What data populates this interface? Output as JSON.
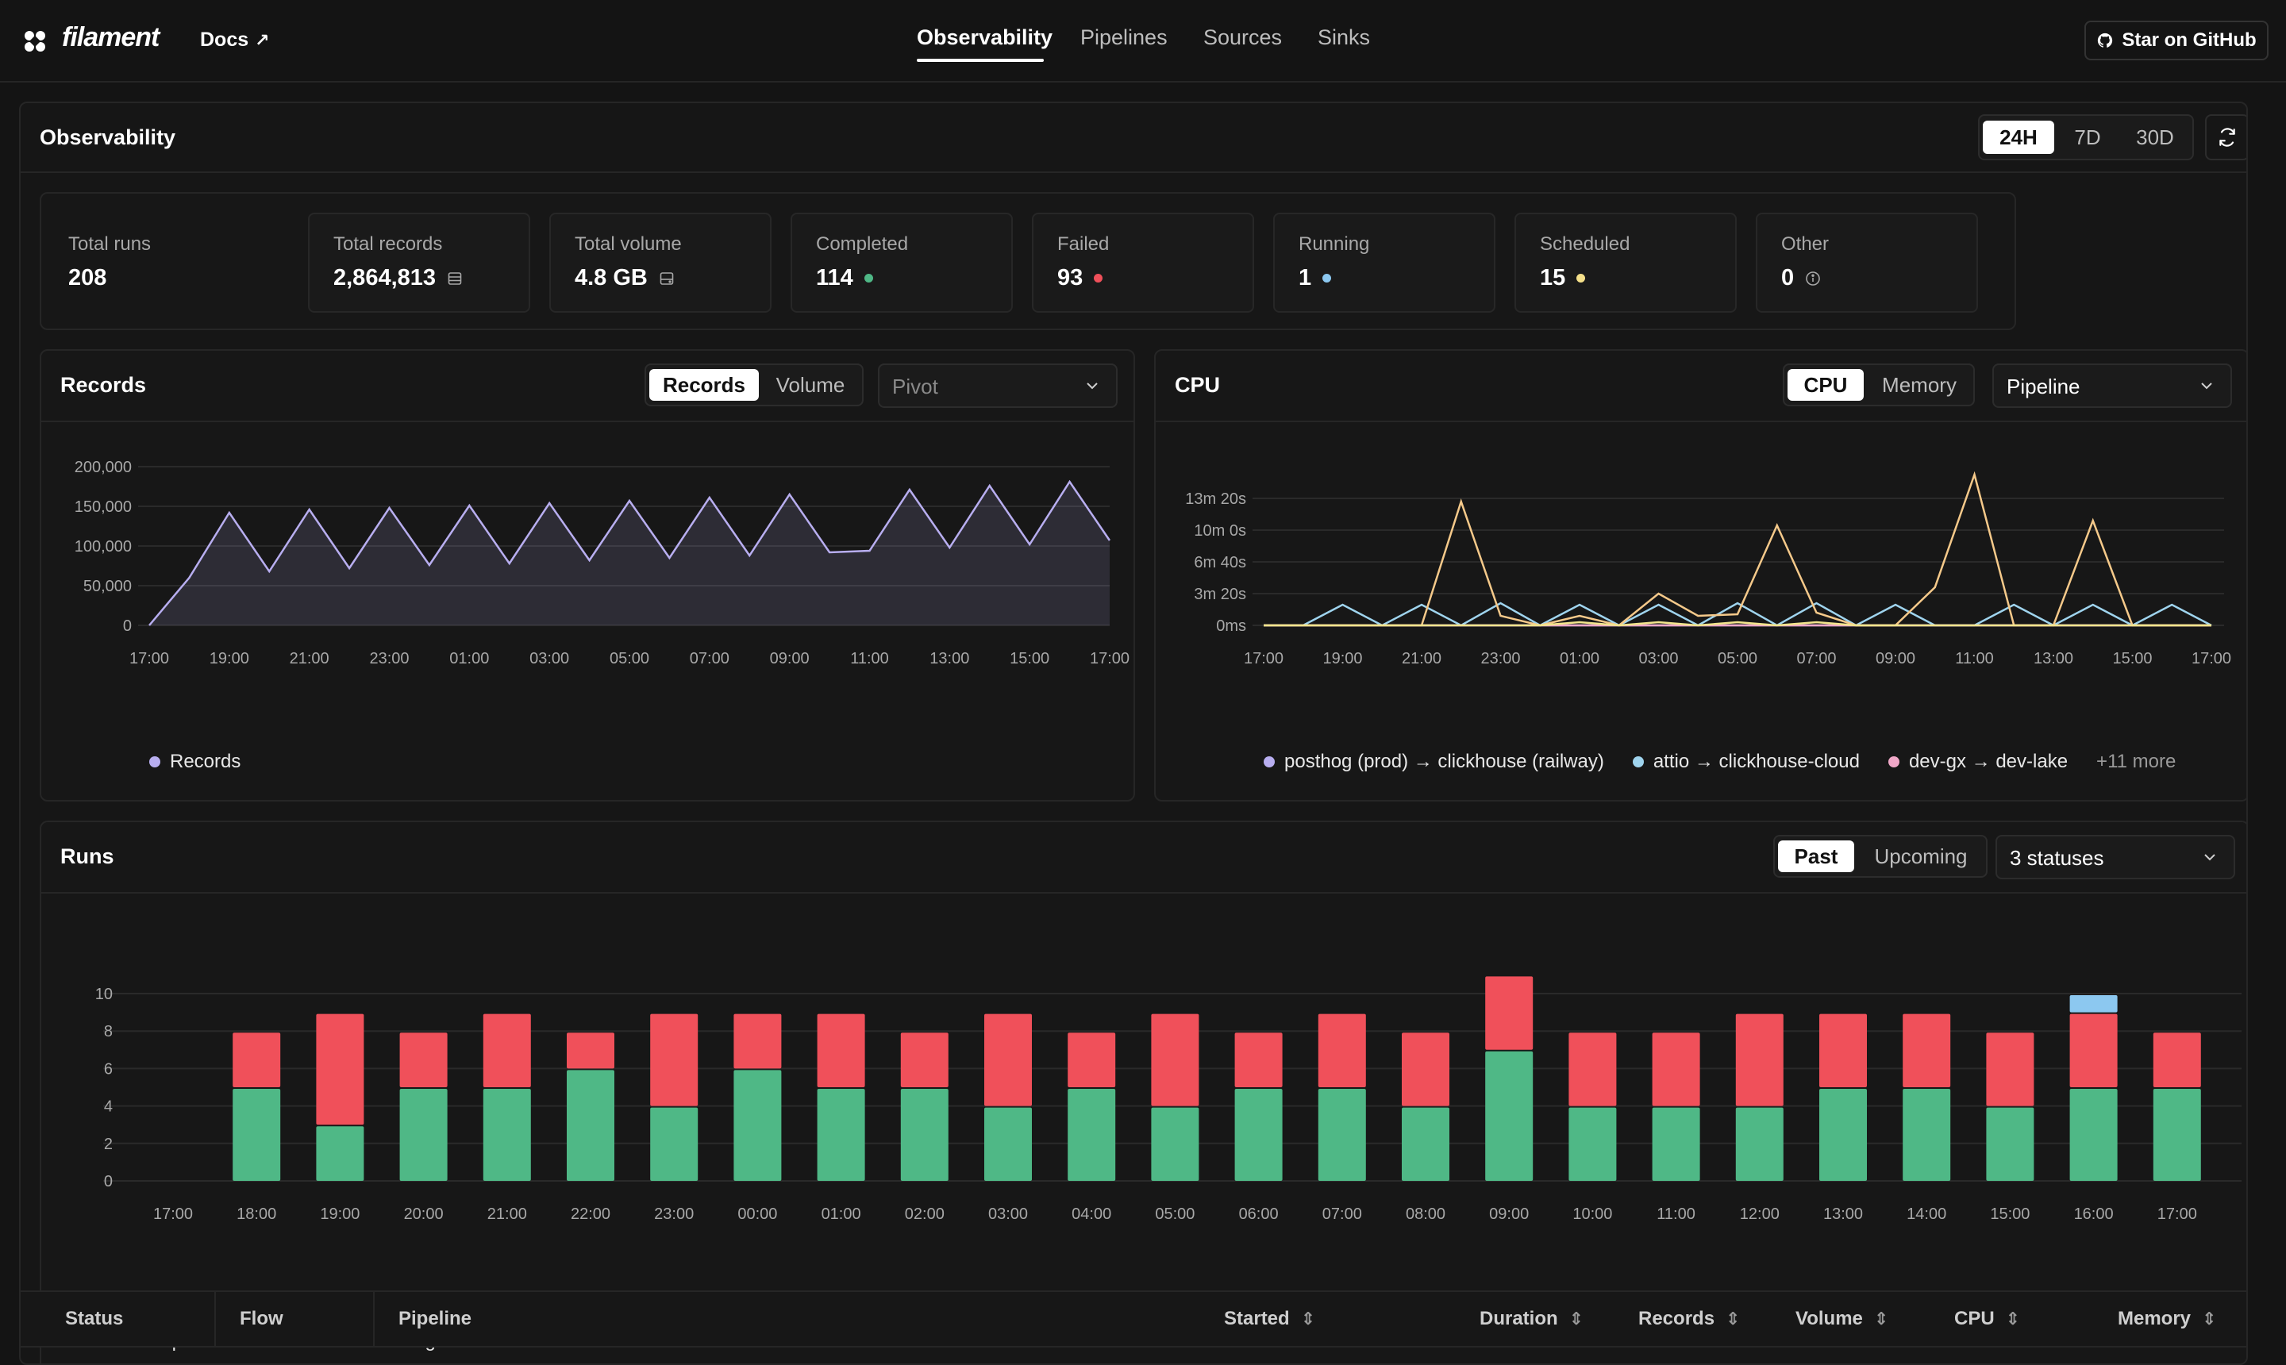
{
  "nav": {
    "brand": "filament",
    "docs": "Docs",
    "tabs": [
      "Observability",
      "Pipelines",
      "Sources",
      "Sinks"
    ],
    "active_tab": "Observability",
    "github": "Star on GitHub"
  },
  "page": {
    "title": "Observability",
    "ranges": [
      "24H",
      "7D",
      "30D"
    ],
    "active_range": "24H"
  },
  "stats": [
    {
      "label": "Total runs",
      "value": "208",
      "indicator": "none"
    },
    {
      "label": "Total records",
      "value": "2,864,813",
      "indicator": "rows-icon"
    },
    {
      "label": "Total volume",
      "value": "4.8 GB",
      "indicator": "drive-icon"
    },
    {
      "label": "Completed",
      "value": "114",
      "indicator": "dot",
      "color": "#4fb886"
    },
    {
      "label": "Failed",
      "value": "93",
      "indicator": "dot",
      "color": "#f0505a"
    },
    {
      "label": "Running",
      "value": "1",
      "indicator": "dot",
      "color": "#8cc8f0"
    },
    {
      "label": "Scheduled",
      "value": "15",
      "indicator": "dot",
      "color": "#f5e08a"
    },
    {
      "label": "Other",
      "value": "0",
      "indicator": "info-icon"
    }
  ],
  "records_card": {
    "title": "Records",
    "toggle": [
      "Records",
      "Volume"
    ],
    "active_toggle": "Records",
    "select_placeholder": "Pivot"
  },
  "cpu_card": {
    "title": "CPU",
    "toggle": [
      "CPU",
      "Memory"
    ],
    "active_toggle": "CPU",
    "select_value": "Pipeline",
    "more": "+11 more"
  },
  "runs_card": {
    "title": "Runs",
    "toggle": [
      "Past",
      "Upcoming"
    ],
    "active_toggle": "Past",
    "select_value": "3 statuses"
  },
  "table": {
    "columns": [
      "Status",
      "Flow",
      "Pipeline",
      "Started",
      "Duration",
      "Records",
      "Volume",
      "CPU",
      "Memory"
    ]
  },
  "colors": {
    "records_line": "#b8aef0",
    "cpu_yellow": "#f5c98a",
    "cpu_blue": "#9fd4ee",
    "completed": "#4fb886",
    "failed": "#f0505a",
    "running": "#8cc8f0"
  },
  "chart_data": [
    {
      "type": "area",
      "title": "Records",
      "x": [
        "17:00",
        "18:00",
        "19:00",
        "20:00",
        "21:00",
        "22:00",
        "23:00",
        "00:00",
        "01:00",
        "02:00",
        "03:00",
        "04:00",
        "05:00",
        "06:00",
        "07:00",
        "08:00",
        "09:00",
        "10:00",
        "11:00",
        "12:00",
        "13:00",
        "14:00",
        "15:00",
        "16:00",
        "17:00"
      ],
      "tick_labels": [
        "17:00",
        "19:00",
        "21:00",
        "23:00",
        "01:00",
        "03:00",
        "05:00",
        "07:00",
        "09:00",
        "11:00",
        "13:00",
        "15:00",
        "17:00"
      ],
      "series": [
        {
          "name": "Records",
          "values": [
            0,
            60000,
            142000,
            68000,
            146000,
            72000,
            148000,
            76000,
            151000,
            78000,
            154000,
            82000,
            157000,
            85000,
            161000,
            88000,
            165000,
            92000,
            94000,
            171000,
            98000,
            176000,
            102000,
            181000,
            107000
          ]
        }
      ],
      "ylim": [
        0,
        200000
      ],
      "yticks": [
        "0",
        "50,000",
        "100,000",
        "150,000",
        "200,000"
      ],
      "grid": true,
      "legend": "bottom-left"
    },
    {
      "type": "line",
      "title": "CPU",
      "x": [
        "17:00",
        "18:00",
        "19:00",
        "20:00",
        "21:00",
        "22:00",
        "23:00",
        "00:00",
        "01:00",
        "02:00",
        "03:00",
        "04:00",
        "05:00",
        "06:00",
        "07:00",
        "08:00",
        "09:00",
        "10:00",
        "11:00",
        "12:00",
        "13:00",
        "14:00",
        "15:00",
        "16:00",
        "17:00"
      ],
      "tick_labels": [
        "17:00",
        "19:00",
        "21:00",
        "23:00",
        "01:00",
        "03:00",
        "05:00",
        "07:00",
        "09:00",
        "11:00",
        "13:00",
        "15:00",
        "17:00"
      ],
      "yticks": [
        "0ms",
        "3m 20s",
        "6m 40s",
        "10m 0s",
        "13m 20s"
      ],
      "ylim_seconds": [
        0,
        900
      ],
      "series": [
        {
          "name": "posthog (prod) → clickhouse (railway)",
          "color": "#b8aef0",
          "values": [
            0,
            0,
            0,
            0,
            0,
            0,
            0,
            0,
            0,
            0,
            0,
            0,
            0,
            0,
            0,
            0,
            0,
            0,
            0,
            0,
            0,
            0,
            0,
            0,
            0
          ]
        },
        {
          "name": "attio → clickhouse-cloud",
          "color": "#9fd4ee",
          "values": [
            0,
            0,
            130,
            0,
            130,
            0,
            140,
            0,
            130,
            0,
            130,
            0,
            140,
            0,
            140,
            0,
            130,
            0,
            0,
            130,
            0,
            130,
            0,
            130,
            0
          ]
        },
        {
          "name": "dev-gx → dev-lake",
          "color": "#f0a8c8",
          "values": [
            0,
            0,
            0,
            0,
            0,
            0,
            0,
            0,
            0,
            0,
            0,
            0,
            0,
            0,
            0,
            0,
            0,
            0,
            0,
            0,
            0,
            0,
            0,
            0,
            0
          ]
        },
        {
          "name": "",
          "color": "#f5c98a",
          "values": [
            0,
            0,
            0,
            0,
            0,
            780,
            60,
            0,
            60,
            0,
            200,
            60,
            70,
            630,
            80,
            0,
            0,
            240,
            950,
            0,
            0,
            660,
            0,
            0,
            0
          ]
        },
        {
          "name": "",
          "color": "#f2e58c",
          "values": [
            0,
            0,
            0,
            0,
            0,
            0,
            0,
            0,
            20,
            0,
            20,
            0,
            20,
            0,
            20,
            0,
            0,
            0,
            0,
            0,
            0,
            0,
            0,
            0,
            0
          ]
        }
      ],
      "grid": true,
      "legend": "bottom-left"
    },
    {
      "type": "bar",
      "stacked": true,
      "title": "Runs",
      "categories": [
        "17:00",
        "18:00",
        "19:00",
        "20:00",
        "21:00",
        "22:00",
        "23:00",
        "00:00",
        "01:00",
        "02:00",
        "03:00",
        "04:00",
        "05:00",
        "06:00",
        "07:00",
        "08:00",
        "09:00",
        "10:00",
        "11:00",
        "12:00",
        "13:00",
        "14:00",
        "15:00",
        "16:00",
        "17:00"
      ],
      "series": [
        {
          "name": "Completed",
          "color": "#4fb886",
          "values": [
            0,
            5,
            3,
            5,
            5,
            6,
            4,
            6,
            5,
            5,
            4,
            5,
            4,
            5,
            5,
            4,
            7,
            4,
            4,
            4,
            5,
            5,
            4,
            5,
            5
          ]
        },
        {
          "name": "Failed",
          "color": "#f0505a",
          "values": [
            0,
            3,
            6,
            3,
            4,
            2,
            5,
            3,
            4,
            3,
            5,
            3,
            5,
            3,
            4,
            4,
            4,
            4,
            4,
            5,
            4,
            4,
            4,
            4,
            3
          ]
        },
        {
          "name": "Running",
          "color": "#8cc8f0",
          "values": [
            0,
            0,
            0,
            0,
            0,
            0,
            0,
            0,
            0,
            0,
            0,
            0,
            0,
            0,
            0,
            0,
            0,
            0,
            0,
            0,
            0,
            0,
            0,
            1,
            0
          ]
        }
      ],
      "ylim": [
        0,
        10
      ],
      "yticks": [
        "0",
        "2",
        "4",
        "6",
        "8",
        "10"
      ],
      "grid": true,
      "legend": "bottom-left"
    }
  ]
}
